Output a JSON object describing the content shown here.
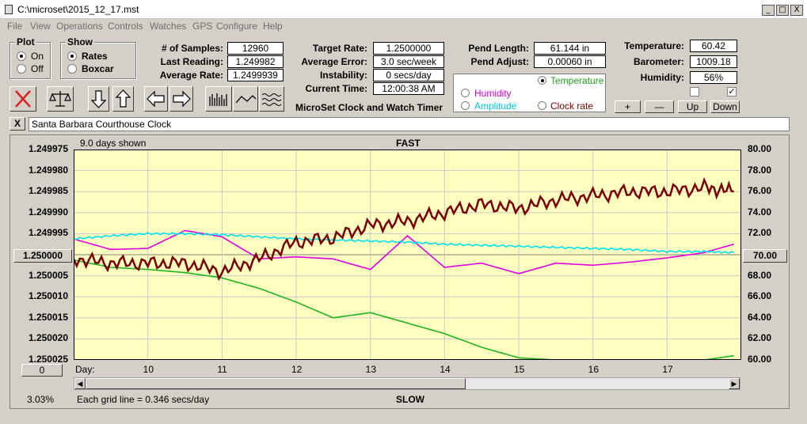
{
  "window": {
    "title": "C:\\microset\\2015_12_17.mst",
    "min": "_",
    "max": "□",
    "close": "X"
  },
  "menu": [
    "File",
    "View",
    "Operations",
    "Controls",
    "Watches",
    "GPS",
    "Configure",
    "Help"
  ],
  "plot": {
    "legend": "Plot",
    "on": "On",
    "off": "Off",
    "selected": "On"
  },
  "show": {
    "legend": "Show",
    "rates": "Rates",
    "boxcar": "Boxcar",
    "selected": "Rates"
  },
  "stats": {
    "samples_label": "# of Samples:",
    "samples": "12960",
    "last_label": "Last Reading:",
    "last": "1.249982",
    "avg_label": "Average Rate:",
    "avg": "1.2499939"
  },
  "target": {
    "rate_label": "Target Rate:",
    "rate": "1.2500000",
    "err_label": "Average Error:",
    "err": "3.0 sec/week",
    "inst_label": "Instability:",
    "inst": "0 secs/day",
    "time_label": "Current Time:",
    "time": "12:00:38 AM",
    "brand": "MicroSet Clock and Watch Timer"
  },
  "pend": {
    "len_label": "Pend Length:",
    "len": "61.144 in",
    "adj_label": "Pend Adjust:",
    "adj": "0.00060 in"
  },
  "overlay": {
    "temperature": "Temperature",
    "humidity": "Humidity",
    "amplitude": "Amplitude",
    "clock_rate": "Clock rate",
    "selected": "Temperature"
  },
  "env": {
    "temp_label": "Temperature:",
    "temp": "60.42",
    "baro_label": "Barometer:",
    "baro": "1009.18",
    "hum_label": "Humidity:",
    "hum": "56%",
    "check1": false,
    "check2": true
  },
  "adjust_buttons": {
    "plus": "+",
    "minus": "—",
    "up": "Up",
    "down": "Down"
  },
  "clock_name": "Santa Barbara Courthouse Clock",
  "clear_btn": "X",
  "chart": {
    "days_shown": "9.0 days shown",
    "fast": "FAST",
    "slow": "SLOW",
    "day_label": "Day:",
    "left_value": "1.250000",
    "left_offset": "0",
    "right_value": "70.00",
    "percent": "3.03%",
    "grid_info": "Each grid line = 0.346 secs/day"
  },
  "chart_data": {
    "type": "line",
    "x": [
      9,
      9.5,
      10,
      10.5,
      11,
      11.5,
      12,
      12.5,
      13,
      13.5,
      14,
      14.5,
      15,
      15.5,
      16,
      16.5,
      17,
      17.5,
      17.9
    ],
    "xlim": [
      9.0,
      18.0
    ],
    "xticks": [
      10,
      11,
      12,
      13,
      14,
      15,
      16,
      17
    ],
    "ylim_left": [
      1.250025,
      1.249975
    ],
    "yticks_left": [
      "1.249975",
      "1.249980",
      "1.249985",
      "1.249990",
      "1.249995",
      "1.250000",
      "1.250005",
      "1.250010",
      "1.250015",
      "1.250020",
      "1.250025"
    ],
    "ylim_right": [
      60,
      80
    ],
    "yticks_right": [
      "80.00",
      "78.00",
      "76.00",
      "74.00",
      "72.00",
      "70.00",
      "68.00",
      "66.00",
      "64.00",
      "62.00",
      "60.00"
    ],
    "series": [
      {
        "name": "Clock rate",
        "color": "#7a0000",
        "axis": "left",
        "values": [
          1.250001,
          1.250002,
          1.250002,
          1.250002,
          1.250004,
          1.250001,
          1.249997,
          1.249996,
          1.249993,
          1.249992,
          1.24999,
          1.249988,
          1.249989,
          1.249987,
          1.249986,
          1.249985,
          1.249985,
          1.249984,
          1.249985
        ]
      },
      {
        "name": "Temperature",
        "color": "#1fb41f",
        "axis": "right",
        "values": [
          69.5,
          68.8,
          68.6,
          68.3,
          67.8,
          66.8,
          65.5,
          64.0,
          64.5,
          63.5,
          62.5,
          61.2,
          60.2,
          60.0,
          60.0,
          60.0,
          60.0,
          60.0,
          60.4
        ]
      },
      {
        "name": "Humidity",
        "color": "#e000e0",
        "axis": "right",
        "values": [
          71.5,
          70.5,
          70.6,
          72.3,
          71.7,
          69.6,
          69.8,
          69.6,
          68.6,
          71.8,
          68.8,
          69.2,
          68.2,
          69.2,
          69.0,
          69.3,
          69.7,
          70.2,
          71.0
        ]
      },
      {
        "name": "Amplitude",
        "color": "#00e0f0",
        "axis": "right",
        "values": [
          71.5,
          71.8,
          72.0,
          72.0,
          71.9,
          71.7,
          71.5,
          71.4,
          71.3,
          71.2,
          71.0,
          70.9,
          70.8,
          70.7,
          70.6,
          70.5,
          70.3,
          70.3,
          70.2
        ]
      }
    ]
  }
}
